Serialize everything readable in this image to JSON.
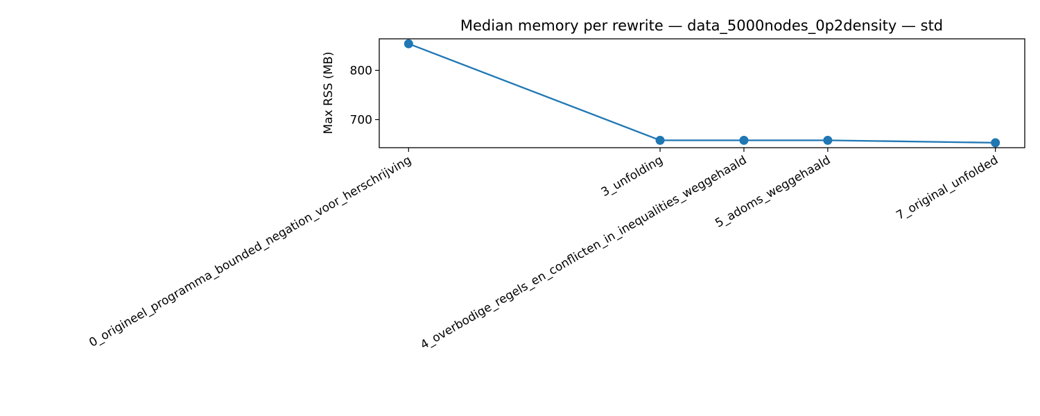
{
  "chart_data": {
    "type": "line",
    "title": "Median memory per rewrite — data_5000nodes_0p2density — std",
    "xlabel": "",
    "ylabel": "Max RSS (MB)",
    "categories": [
      "0_origineel_programma_bounded_negation_voor_herschrijving",
      "3_unfolding",
      "4_overbodige_regels_en_conflicten_in_inequalities_weggehaald",
      "5_adoms_weggehaald",
      "7_original_unfolded"
    ],
    "x": [
      0,
      3,
      4,
      5,
      7
    ],
    "values": [
      854,
      658,
      658,
      658,
      653
    ],
    "ylim": [
      643,
      864
    ],
    "xlim": [
      -0.35,
      7.35
    ],
    "yticks": [
      700,
      800
    ],
    "ytick_labels": [
      "700",
      "800"
    ],
    "grid": false,
    "marker": "circle",
    "line_color": "#1f77b4",
    "axes_color": "#000000"
  }
}
